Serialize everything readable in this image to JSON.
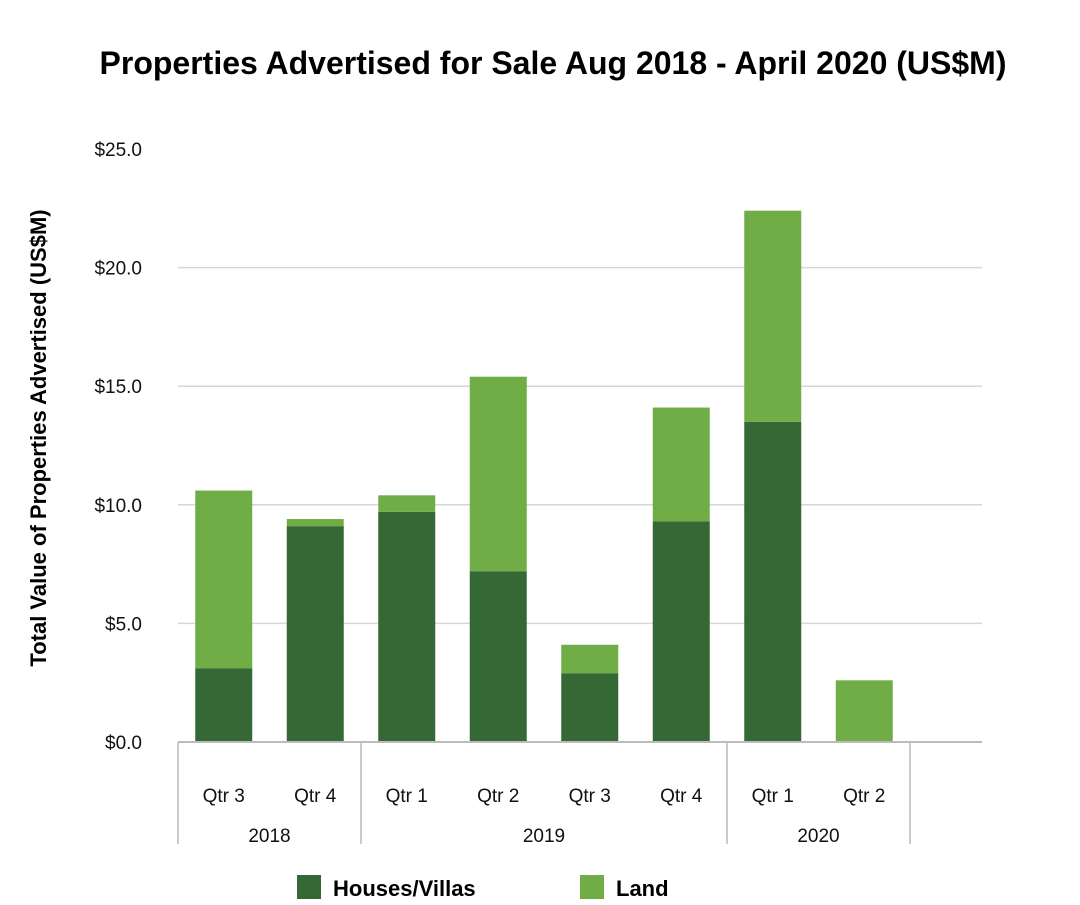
{
  "colors": {
    "houses": "#356834",
    "land": "#70ad47",
    "grid": "#d6d6d6",
    "axis": "#bbbbbb"
  },
  "chart_data": {
    "type": "bar",
    "stacked": true,
    "title": "Properties Advertised for Sale Aug 2018 - April 2020 (US$M)",
    "xlabel": "",
    "ylabel": "Total Value of Properties Advertised (US$M)",
    "ylim": [
      0,
      25
    ],
    "yticks": [
      0,
      5,
      10,
      15,
      20,
      25
    ],
    "ytick_labels": [
      "$0.0",
      "$5.0",
      "$10.0",
      "$15.0",
      "$20.0",
      "$25.0"
    ],
    "categories": [
      "Qtr 3",
      "Qtr 4",
      "Qtr 1",
      "Qtr 2",
      "Qtr 3",
      "Qtr 4",
      "Qtr 1",
      "Qtr 2"
    ],
    "groups": [
      {
        "label": "2018",
        "count": 2
      },
      {
        "label": "2019",
        "count": 4
      },
      {
        "label": "2020",
        "count": 2
      }
    ],
    "series": [
      {
        "name": "Houses/Villas",
        "values": [
          3.1,
          9.1,
          9.7,
          7.2,
          2.9,
          9.3,
          13.5,
          0.0
        ]
      },
      {
        "name": "Land",
        "values": [
          7.5,
          0.3,
          0.7,
          8.2,
          1.2,
          4.8,
          8.9,
          2.6
        ]
      }
    ],
    "legend_position": "bottom"
  }
}
